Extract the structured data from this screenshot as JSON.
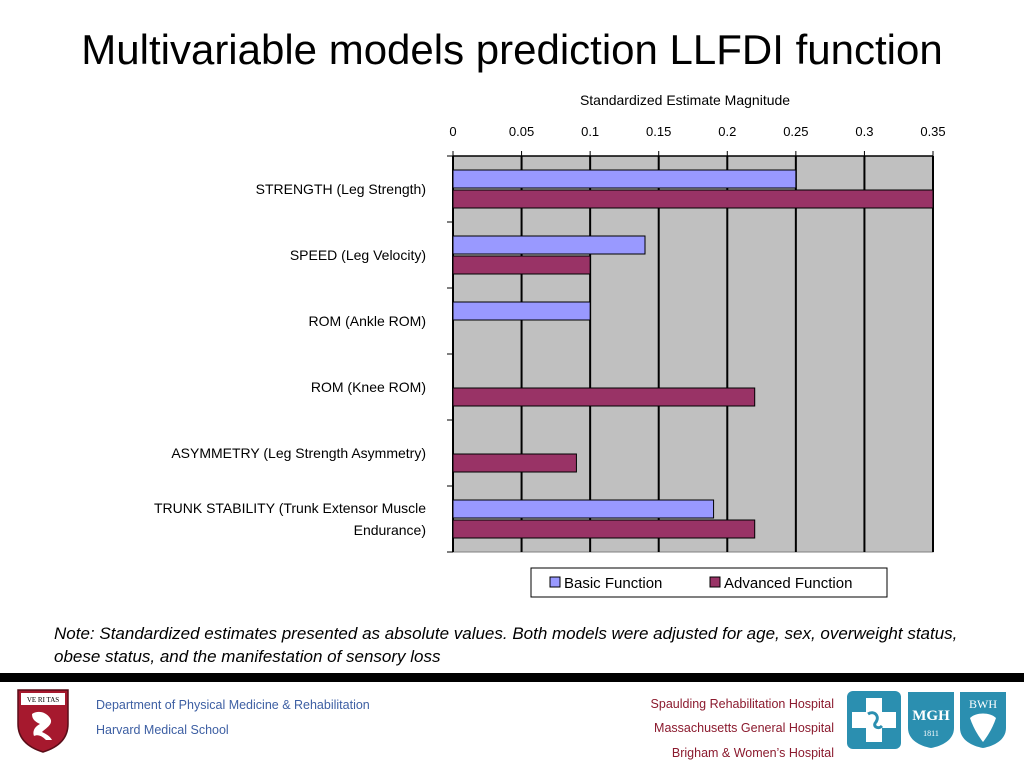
{
  "slide": {
    "title": "Multivariable models prediction LLFDI function",
    "note": "Note: Standardized estimates presented as absolute values. Both models were adjusted for age, sex, overweight status, obese status, and the manifestation of sensory loss"
  },
  "chart_data": {
    "type": "bar",
    "orientation": "horizontal",
    "title": "Standardized Estimate Magnitude",
    "x_axis_position": "top",
    "xlim": [
      0,
      0.35
    ],
    "x_ticks": [
      "0",
      "0.05",
      "0.1",
      "0.15",
      "0.2",
      "0.25",
      "0.3",
      "0.35"
    ],
    "x_tick_values": [
      0,
      0.05,
      0.1,
      0.15,
      0.2,
      0.25,
      0.3,
      0.35
    ],
    "grid": true,
    "categories": [
      [
        "STRENGTH (Leg Strength)"
      ],
      [
        "SPEED (Leg Velocity)"
      ],
      [
        "ROM (Ankle ROM)"
      ],
      [
        "ROM (Knee ROM)"
      ],
      [
        "ASYMMETRY (Leg Strength Asymmetry)"
      ],
      [
        "TRUNK STABILITY (Trunk Extensor Muscle",
        "Endurance)"
      ]
    ],
    "series": [
      {
        "name": "Basic Function",
        "color": "#9999ff",
        "values": [
          0.25,
          0.14,
          0.1,
          null,
          null,
          0.19
        ]
      },
      {
        "name": "Advanced Function",
        "color": "#993366",
        "values": [
          0.35,
          0.1,
          null,
          0.22,
          0.09,
          0.22
        ]
      }
    ],
    "legend": "bottom",
    "plot_background": "#c0c0c0"
  },
  "footer": {
    "department": "Department of Physical Medicine & Rehabilitation",
    "school": "Harvard Medical School",
    "hospital_1": "Spaulding Rehabilitation Hospital",
    "hospital_2": "Massachusetts General Hospital",
    "hospital_3": "Brigham & Women’s Hospital",
    "mgh_logo_text": "MGH",
    "mgh_logo_year": "1811",
    "bwh_logo_text": "BWH",
    "crest_text": "VE RI TAS",
    "colors": {
      "link_blue": "#3d5fa3",
      "hospital_red": "#8b1a2e",
      "crest_red": "#a6192e",
      "logo_teal": "#2b8fb0"
    }
  }
}
